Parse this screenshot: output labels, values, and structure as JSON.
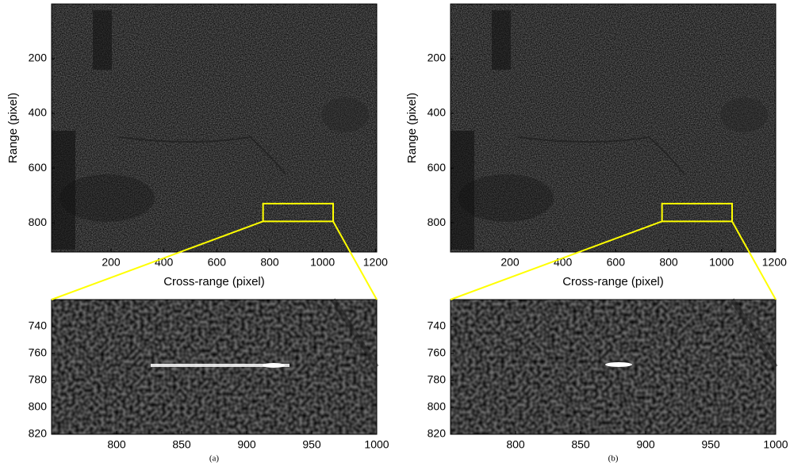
{
  "chart_data": [
    {
      "type": "image",
      "xlabel": "Cross-range (pixel)",
      "ylabel": "Range (pixel)",
      "xlim": [
        -25,
        1205
      ],
      "ylim": [
        0,
        907
      ],
      "xticks": [
        200,
        400,
        600,
        800,
        1000,
        1200
      ],
      "yticks": [
        200,
        400,
        600,
        800
      ],
      "highlight": {
        "x": [
          775,
          1040
        ],
        "y": [
          730,
          795
        ],
        "color": "#ffff00"
      }
    },
    {
      "type": "image",
      "xlabel": "Cross-range (pixel)",
      "ylabel": "Range (pixel)",
      "xlim": [
        -25,
        1205
      ],
      "ylim": [
        0,
        907
      ],
      "xticks": [
        200,
        400,
        600,
        800,
        1000,
        1200
      ],
      "yticks": [
        200,
        400,
        600,
        800
      ],
      "highlight": {
        "x": [
          775,
          1040
        ],
        "y": [
          730,
          795
        ],
        "color": "#ffff00"
      }
    },
    {
      "type": "image",
      "caption": "(a)",
      "xlim": [
        750,
        1000
      ],
      "ylim": [
        720,
        820
      ],
      "xticks": [
        800,
        850,
        900,
        950,
        1000
      ],
      "yticks": [
        740,
        760,
        780,
        800,
        820
      ]
    },
    {
      "type": "image",
      "caption": "(b)",
      "xlim": [
        750,
        1000
      ],
      "ylim": [
        720,
        820
      ],
      "xticks": [
        800,
        850,
        900,
        950,
        1000
      ],
      "yticks": [
        740,
        760,
        780,
        800,
        820
      ]
    }
  ]
}
